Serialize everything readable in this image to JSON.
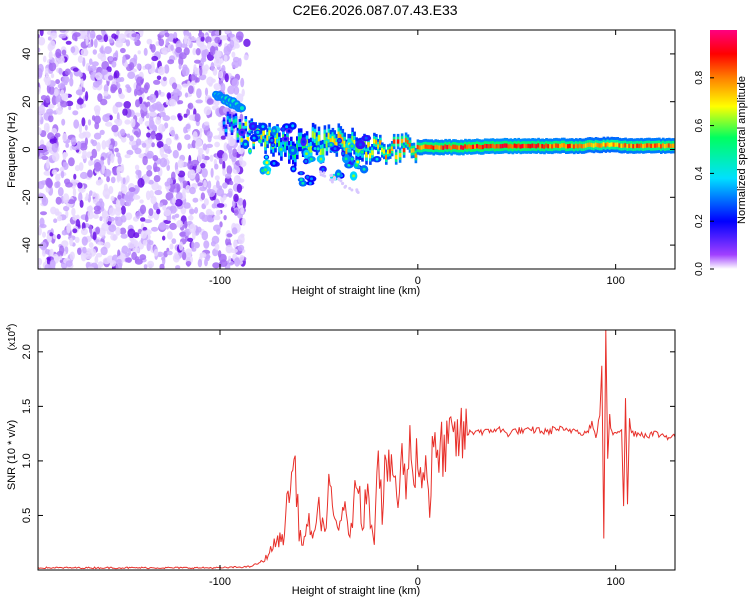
{
  "figure_title": "C2E6.2026.087.07.43.E33",
  "chart_data": [
    {
      "type": "heatmap",
      "title": "C2E6.2026.087.07.43.E33",
      "xlabel": "Height of straight line (km)",
      "ylabel": "Frequency (Hz)",
      "xlim": [
        -192,
        130
      ],
      "ylim": [
        -50,
        50
      ],
      "xticks": [
        -100,
        0,
        100
      ],
      "yticks": [
        -40,
        -20,
        0,
        20,
        40
      ],
      "colorbar": {
        "label": "Normalized spectral amplitude",
        "range": [
          0,
          1
        ],
        "ticks": [
          "0.0",
          "0.2",
          "0.4",
          "0.6",
          "0.8"
        ],
        "colors": [
          "#ffffff",
          "#a040ff",
          "#0000ff",
          "#00e0ff",
          "#00ff60",
          "#ffff00",
          "#ff8000",
          "#ff0000",
          "#ff0080"
        ]
      },
      "noise_region": {
        "x_from": -192,
        "x_to": -88,
        "y_from": -50,
        "y_to": 50,
        "amplitude": 0.2
      },
      "signal_track": [
        {
          "x": -102,
          "y": 23,
          "amp": 0.35,
          "halfwidth": 1.5
        },
        {
          "x": -95,
          "y": 20,
          "amp": 0.45,
          "halfwidth": 1.5
        },
        {
          "x": -88,
          "y": 17,
          "amp": 0.45,
          "halfwidth": 1.5
        },
        {
          "x": -98,
          "y": 10,
          "amp": 0.35,
          "halfwidth": 1.5
        },
        {
          "x": -90,
          "y": 8,
          "amp": 0.6,
          "halfwidth": 2
        },
        {
          "x": -82,
          "y": 6,
          "amp": 0.75,
          "halfwidth": 2
        },
        {
          "x": -72,
          "y": 4,
          "amp": 0.65,
          "halfwidth": 3
        },
        {
          "x": -65,
          "y": 0,
          "amp": 0.55,
          "halfwidth": 3
        },
        {
          "x": -58,
          "y": 3,
          "amp": 0.6,
          "halfwidth": 3
        },
        {
          "x": -48,
          "y": 2,
          "amp": 0.7,
          "halfwidth": 3
        },
        {
          "x": -38,
          "y": 3,
          "amp": 0.75,
          "halfwidth": 3
        },
        {
          "x": -30,
          "y": 2,
          "amp": 0.65,
          "halfwidth": 3
        },
        {
          "x": -20,
          "y": 0,
          "amp": 0.75,
          "halfwidth": 2
        },
        {
          "x": -10,
          "y": 0,
          "amp": 0.85,
          "halfwidth": 2
        },
        {
          "x": 0,
          "y": 1,
          "amp": 0.85,
          "halfwidth": 2
        },
        {
          "x": 20,
          "y": 1,
          "amp": 0.9,
          "halfwidth": 2
        },
        {
          "x": 50,
          "y": 1.5,
          "amp": 0.9,
          "halfwidth": 2
        },
        {
          "x": 80,
          "y": 1.5,
          "amp": 0.85,
          "halfwidth": 2
        },
        {
          "x": 95,
          "y": 2,
          "amp": 0.8,
          "halfwidth": 2
        },
        {
          "x": 110,
          "y": 1.5,
          "amp": 0.85,
          "halfwidth": 2
        },
        {
          "x": 130,
          "y": 1.5,
          "amp": 0.85,
          "halfwidth": 2
        }
      ]
    },
    {
      "type": "line",
      "title": "",
      "xlabel": "Height of straight line (km)",
      "ylabel": "SNR (10 * v/v)",
      "y_multiplier": "(x10",
      "y_multiplier_exp": "4",
      "y_multiplier_close": ")",
      "xlim": [
        -192,
        130
      ],
      "ylim": [
        0,
        2.2
      ],
      "xticks": [
        -100,
        0,
        100
      ],
      "yticks": [
        0.5,
        1.0,
        1.5,
        2.0
      ],
      "ytick_labels": [
        "0.5",
        "1.0",
        "1.5",
        "2.0"
      ],
      "series": [
        {
          "name": "SNR",
          "color": "#e8302a",
          "x": [
            -192,
            -150,
            -100,
            -85,
            -78,
            -72,
            -68,
            -65,
            -62,
            -60,
            -58,
            -55,
            -52,
            -50,
            -47,
            -45,
            -42,
            -40,
            -38,
            -35,
            -33,
            -30,
            -28,
            -26,
            -24,
            -22,
            -20,
            -18,
            -16,
            -14,
            -12,
            -10,
            -8,
            -6,
            -4,
            -2,
            0,
            2,
            4,
            6,
            8,
            10,
            12,
            14,
            16,
            18,
            20,
            22,
            25,
            30,
            35,
            40,
            45,
            50,
            55,
            60,
            65,
            70,
            75,
            80,
            85,
            88,
            90,
            92,
            93,
            94,
            95,
            96,
            97,
            98,
            100,
            103,
            104,
            105,
            106,
            107,
            108,
            110,
            115,
            120,
            125,
            130
          ],
          "y": [
            0.02,
            0.02,
            0.02,
            0.03,
            0.08,
            0.25,
            0.3,
            0.75,
            0.98,
            0.35,
            0.25,
            0.42,
            0.3,
            0.55,
            0.35,
            0.72,
            0.45,
            0.35,
            0.65,
            0.3,
            0.5,
            0.9,
            0.4,
            0.75,
            0.5,
            0.3,
            1.22,
            0.5,
            1.05,
            0.8,
            0.95,
            0.6,
            1.0,
            0.8,
            1.12,
            0.92,
            1.1,
            0.75,
            1.1,
            0.55,
            1.25,
            0.9,
            1.15,
            1.05,
            1.2,
            1.15,
            1.22,
            1.2,
            1.25,
            1.28,
            1.26,
            1.3,
            1.25,
            1.28,
            1.27,
            1.29,
            1.26,
            1.3,
            1.27,
            1.29,
            1.25,
            1.35,
            1.2,
            1.42,
            1.9,
            0.28,
            2.2,
            1.0,
            1.4,
            1.25,
            1.27,
            1.3,
            0.6,
            1.55,
            0.6,
            1.38,
            1.25,
            1.26,
            1.24,
            1.25,
            1.23,
            1.22
          ]
        }
      ]
    }
  ]
}
